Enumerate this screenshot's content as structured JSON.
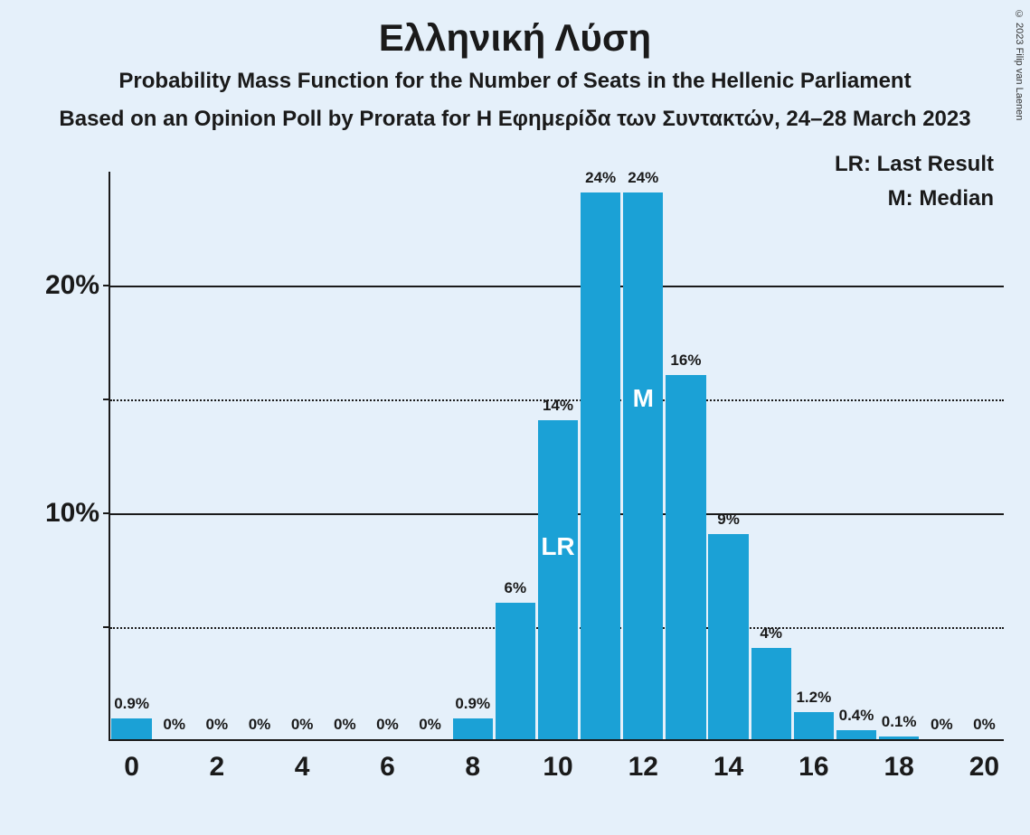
{
  "copyright": "© 2023 Filip van Laenen",
  "title": "Ελληνική Λύση",
  "subtitle1": "Probability Mass Function for the Number of Seats in the Hellenic Parliament",
  "subtitle2": "Based on an Opinion Poll by Prorata for Η Εφημερίδα των Συντακτών, 24–28 March 2023",
  "legend": {
    "lr": "LR: Last Result",
    "m": "M: Median"
  },
  "chart": {
    "type": "bar",
    "background_color": "#e5f0fa",
    "bar_color": "#1ba1d6",
    "text_color": "#1a1a1a",
    "axis_color": "#1a1a1a",
    "grid_major_color": "#1a1a1a",
    "grid_minor_color": "#1a1a1a",
    "ylim_max": 25,
    "y_ticks": [
      {
        "value": 5,
        "label": "",
        "major": false
      },
      {
        "value": 10,
        "label": "10%",
        "major": true
      },
      {
        "value": 15,
        "label": "",
        "major": false
      },
      {
        "value": 20,
        "label": "20%",
        "major": true
      }
    ],
    "x_ticks": [
      {
        "value": 0,
        "label": "0"
      },
      {
        "value": 2,
        "label": "2"
      },
      {
        "value": 4,
        "label": "4"
      },
      {
        "value": 6,
        "label": "6"
      },
      {
        "value": 8,
        "label": "8"
      },
      {
        "value": 10,
        "label": "10"
      },
      {
        "value": 12,
        "label": "12"
      },
      {
        "value": 14,
        "label": "14"
      },
      {
        "value": 16,
        "label": "16"
      },
      {
        "value": 18,
        "label": "18"
      },
      {
        "value": 20,
        "label": "20"
      }
    ],
    "categories": [
      0,
      1,
      2,
      3,
      4,
      5,
      6,
      7,
      8,
      9,
      10,
      11,
      12,
      13,
      14,
      15,
      16,
      17,
      18,
      19,
      20
    ],
    "values": [
      0.9,
      0,
      0,
      0,
      0,
      0,
      0,
      0,
      0.9,
      6,
      14,
      24,
      24,
      16,
      9,
      4,
      1.2,
      0.4,
      0.1,
      0,
      0
    ],
    "value_labels": [
      "0.9%",
      "0%",
      "0%",
      "0%",
      "0%",
      "0%",
      "0%",
      "0%",
      "0.9%",
      "6%",
      "14%",
      "24%",
      "24%",
      "16%",
      "9%",
      "4%",
      "1.2%",
      "0.4%",
      "0.1%",
      "0%",
      "0%"
    ],
    "tags": {
      "10": "LR",
      "12": "M"
    },
    "bar_gap_ratio": 0.06,
    "title_fontsize": 42,
    "subtitle_fontsize": 24,
    "axis_label_fontsize": 30,
    "bar_label_fontsize": 17,
    "tag_fontsize": 28
  }
}
